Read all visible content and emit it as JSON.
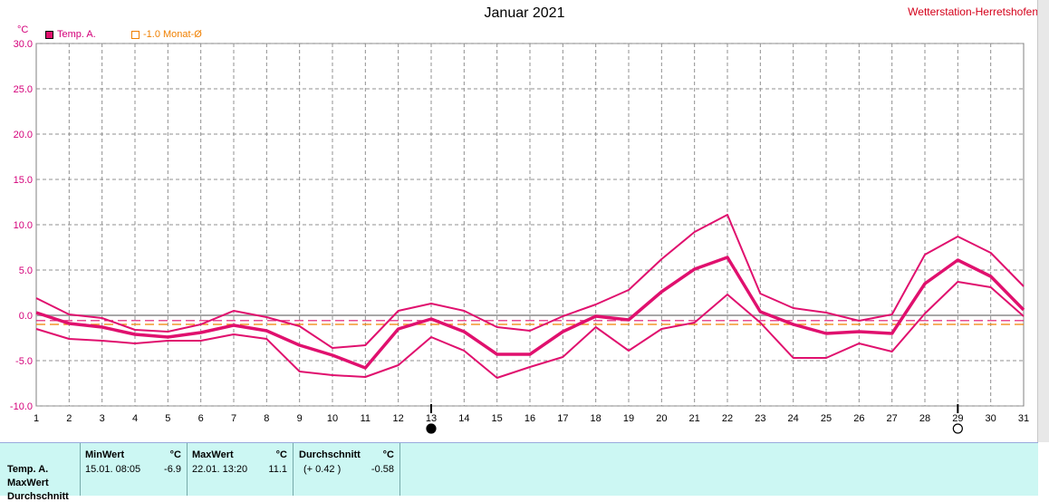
{
  "header": {
    "title": "Januar 2021",
    "station": "Wetterstation-Herretshofen",
    "unit": "°C"
  },
  "legend": [
    {
      "label": "Temp. A.",
      "color": "#e0106e",
      "filled": true
    },
    {
      "label": "-1.0 Monat-Ø",
      "color": "#f08000",
      "filled": false
    }
  ],
  "chart_data": {
    "type": "line",
    "title": "Januar 2021",
    "ylabel": "°C",
    "ylim": [
      -10,
      30
    ],
    "yticks": [
      -10,
      -5,
      0,
      5,
      10,
      15,
      20,
      25,
      30
    ],
    "ytick_labels": [
      "-10.0",
      "-5.0",
      "0.0",
      "5.0",
      "10.0",
      "15.0",
      "20.0",
      "25.0",
      "30.0"
    ],
    "x": [
      1,
      2,
      3,
      4,
      5,
      6,
      7,
      8,
      9,
      10,
      11,
      12,
      13,
      14,
      15,
      16,
      17,
      18,
      19,
      20,
      21,
      22,
      23,
      24,
      25,
      26,
      27,
      28,
      29,
      30,
      31
    ],
    "series": [
      {
        "name": "max",
        "color": "#e0106e",
        "width": 2,
        "values": [
          1.9,
          0.1,
          -0.3,
          -1.6,
          -1.8,
          -1.0,
          0.5,
          -0.2,
          -1.2,
          -3.6,
          -3.3,
          0.5,
          1.3,
          0.5,
          -1.3,
          -1.7,
          -0.1,
          1.2,
          2.8,
          6.2,
          9.2,
          11.1,
          2.4,
          0.8,
          0.3,
          -0.6,
          0.1,
          6.7,
          8.7,
          6.9,
          3.2
        ]
      },
      {
        "name": "avg",
        "color": "#e0106e",
        "width": 3.5,
        "values": [
          0.3,
          -0.9,
          -1.3,
          -2.1,
          -2.4,
          -1.9,
          -1.1,
          -1.7,
          -3.3,
          -4.4,
          -5.8,
          -1.5,
          -0.4,
          -1.8,
          -4.3,
          -4.3,
          -1.8,
          -0.1,
          -0.5,
          2.6,
          5.1,
          6.4,
          0.4,
          -1.0,
          -2.0,
          -1.8,
          -2.0,
          3.5,
          6.1,
          4.3,
          0.6
        ]
      },
      {
        "name": "min",
        "color": "#e0106e",
        "width": 2,
        "values": [
          -1.5,
          -2.6,
          -2.8,
          -3.1,
          -2.8,
          -2.8,
          -2.1,
          -2.6,
          -6.2,
          -6.6,
          -6.8,
          -5.5,
          -2.4,
          -3.9,
          -6.9,
          -5.7,
          -4.6,
          -1.3,
          -3.9,
          -1.5,
          -0.8,
          2.3,
          -0.8,
          -4.7,
          -4.7,
          -3.1,
          -4.0,
          0.2,
          3.7,
          3.1,
          -0.1
        ]
      }
    ],
    "ref_lines": [
      {
        "value": -0.58,
        "color": "#e0106e"
      },
      {
        "value": -1.0,
        "color": "#f08000"
      }
    ],
    "moon_markers": [
      {
        "day": 13,
        "phase": "new"
      },
      {
        "day": 29,
        "phase": "full"
      }
    ],
    "grid": true
  },
  "stats": {
    "row_labels": [
      "Temp. A.",
      "MaxWert",
      "Durchschnitt"
    ],
    "min": {
      "header": "MinWert",
      "unit": "°C",
      "when": "15.01.  08:05",
      "value": "-6.9"
    },
    "max": {
      "header": "MaxWert",
      "unit": "°C",
      "when": "22.01.  13:20",
      "value": "11.1"
    },
    "avg": {
      "header": "Durchschnitt",
      "unit": "°C",
      "delta": "(+ 0.42 )",
      "value": "-0.58"
    }
  }
}
